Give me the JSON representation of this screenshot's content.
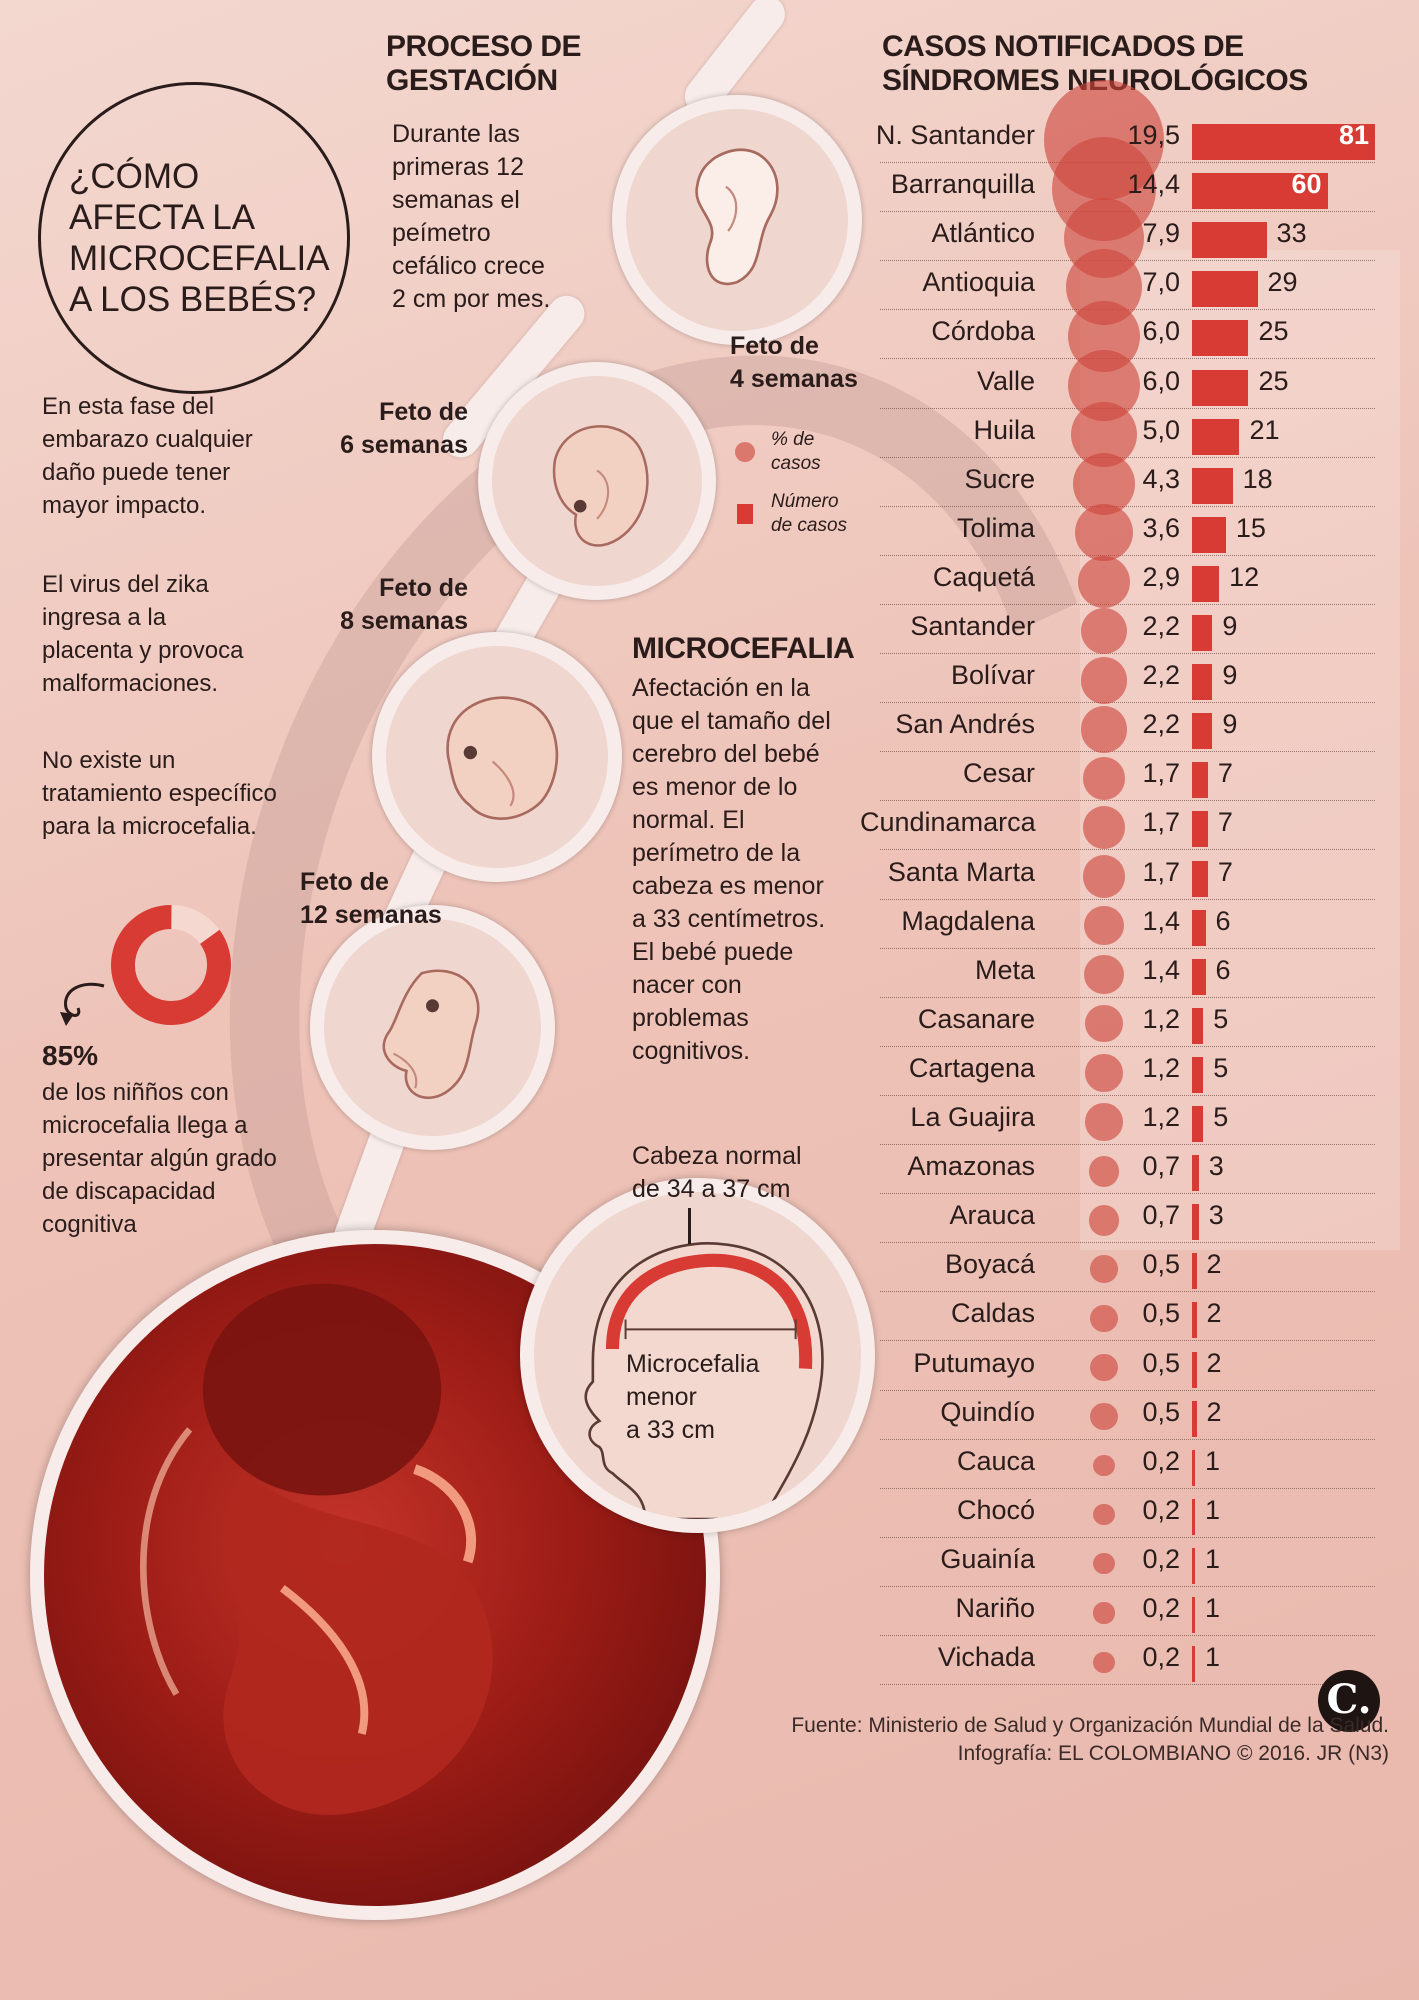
{
  "question": {
    "line1": "¿CÓMO",
    "line2": "AFECTA LA",
    "line3": "MICROCEFALIA",
    "line4": "A LOS BEBÉS?"
  },
  "gestation": {
    "title_line1": "PROCESO DE",
    "title_line2": "GESTACIÓN",
    "text": [
      "Durante las",
      "primeras 12",
      "semanas el",
      "peímetro",
      "cefálico crece",
      "2 cm por mes."
    ],
    "fetus_labels": {
      "w4": [
        "Feto de",
        "4 semanas"
      ],
      "w6": [
        "Feto de",
        "6 semanas"
      ],
      "w8": [
        "Feto de",
        "8 semanas"
      ],
      "w12": [
        "Feto de",
        "12 semanas"
      ]
    }
  },
  "left_notes": {
    "p1": [
      "En esta fase del",
      "embarazo cualquier",
      "daño puede tener",
      "mayor impacto."
    ],
    "p2": [
      "El virus del zika",
      "ingresa a la",
      "placenta y provoca",
      "malformaciones."
    ],
    "p3": [
      "No existe un",
      "tratamiento específico",
      "para la microcefalia."
    ]
  },
  "stat": {
    "value": "85%",
    "fraction": 0.85,
    "text": [
      "de los niñños con",
      "microcefalia llega a",
      "presentar algún grado",
      "de discapacidad",
      "cognitiva"
    ]
  },
  "microcefalia": {
    "title": "MICROCEFALIA",
    "text": [
      "Afectación en la",
      "que el tamaño del",
      "cerebro del bebé",
      "es menor de lo",
      "normal. El",
      "perímetro de la",
      "cabeza es menor",
      "a 33 centímetros.",
      "El bebé puede",
      "nacer con",
      "problemas",
      "cognitivos."
    ]
  },
  "head_diagram": {
    "normal": [
      "Cabeza normal",
      "de 34 a 37 cm"
    ],
    "micro": [
      "Microcefalia",
      "menor",
      "a 33 cm"
    ]
  },
  "legend": {
    "pct": [
      "% de",
      "casos"
    ],
    "count": [
      "Número",
      "de casos"
    ]
  },
  "colors": {
    "bar": "#d83b34",
    "dot": "rgba(205,70,60,0.62)",
    "spine": "#f7ecea"
  },
  "chart_data": {
    "type": "bar",
    "title": "CASOS NOTIFICADOS DE SÍNDROMES NEUROLÓGICOS",
    "title_line1": "CASOS NOTIFICADOS DE",
    "title_line2": "SÍNDROMES NEUROLÓGICOS",
    "categories": [
      "N. Santander",
      "Barranquilla",
      "Atlántico",
      "Antioquia",
      "Córdoba",
      "Valle",
      "Huila",
      "Sucre",
      "Tolima",
      "Caquetá",
      "Santander",
      "Bolívar",
      "San Andrés",
      "Cesar",
      "Cundinamarca",
      "Santa Marta",
      "Magdalena",
      "Meta",
      "Casanare",
      "Cartagena",
      "La Guajira",
      "Amazonas",
      "Arauca",
      "Boyacá",
      "Caldas",
      "Putumayo",
      "Quindío",
      "Cauca",
      "Chocó",
      "Guainía",
      "Nariño",
      "Vichada"
    ],
    "series": [
      {
        "name": "% de casos",
        "values": [
          19.5,
          14.4,
          7.9,
          7.0,
          6.0,
          6.0,
          5.0,
          4.3,
          3.6,
          2.9,
          2.2,
          2.2,
          2.2,
          1.7,
          1.7,
          1.7,
          1.4,
          1.4,
          1.2,
          1.2,
          1.2,
          0.7,
          0.7,
          0.5,
          0.5,
          0.5,
          0.5,
          0.2,
          0.2,
          0.2,
          0.2,
          0.2
        ],
        "labels": [
          "19,5",
          "14,4",
          "7,9",
          "7,0",
          "6,0",
          "6,0",
          "5,0",
          "4,3",
          "3,6",
          "2,9",
          "2,2",
          "2,2",
          "2,2",
          "1,7",
          "1,7",
          "1,7",
          "1,4",
          "1,4",
          "1,2",
          "1,2",
          "1,2",
          "0,7",
          "0,7",
          "0,5",
          "0,5",
          "0,5",
          "0,5",
          "0,2",
          "0,2",
          "0,2",
          "0,2",
          "0,2"
        ]
      },
      {
        "name": "Número de casos",
        "values": [
          81,
          60,
          33,
          29,
          25,
          25,
          21,
          18,
          15,
          12,
          9,
          9,
          9,
          7,
          7,
          7,
          6,
          6,
          5,
          5,
          5,
          3,
          3,
          2,
          2,
          2,
          2,
          1,
          1,
          1,
          1,
          1
        ]
      }
    ],
    "xlim": [
      0,
      81
    ]
  },
  "footer": {
    "source": "Fuente: Ministerio de Salud y Organización Mundial de la Salud.",
    "credit": "Infografía: EL COLOMBIANO © 2016. JR (N3)",
    "logo": "C."
  }
}
